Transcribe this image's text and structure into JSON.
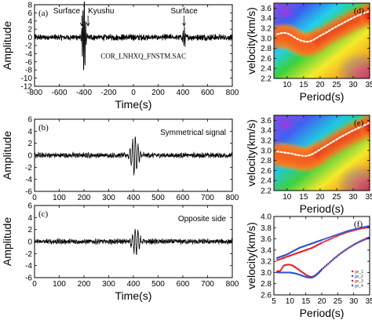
{
  "chart_data": [
    {
      "id": "a",
      "type": "line",
      "panel_label": "(a)",
      "xlabel": "Time(s)",
      "ylabel": "Amplitude",
      "xlim": [
        -800,
        800
      ],
      "ylim": [
        -12,
        8
      ],
      "xticks": [
        -800,
        -600,
        -400,
        -200,
        0,
        200,
        400,
        600,
        800
      ],
      "yticks": [
        -12,
        -10,
        -8,
        -6,
        -4,
        -2,
        0,
        2,
        4,
        6,
        8
      ],
      "file_label": "COR_LNHXQ_FNSTM.SAC",
      "annotations": [
        {
          "text": "Surface",
          "x": -418,
          "y": 7.2
        },
        {
          "text": "Kyushu",
          "x": -380,
          "y": 7.2
        },
        {
          "text": "Surface",
          "x": 410,
          "y": 7.2
        }
      ],
      "packets": [
        {
          "center": -400,
          "amp": 10,
          "width": 15,
          "period": 11
        },
        {
          "center": 410,
          "amp": 2.5,
          "width": 12,
          "period": 11
        }
      ],
      "noise": 0.6
    },
    {
      "id": "b",
      "type": "line",
      "panel_label": "(b)",
      "xlabel": "",
      "ylabel": "Amplitude",
      "xlim": [
        0,
        800
      ],
      "ylim": [
        -6,
        6
      ],
      "xticks": [
        0,
        100,
        200,
        300,
        400,
        500,
        600,
        700,
        800
      ],
      "yticks": [
        -6,
        -4,
        -2,
        0,
        2,
        4,
        6
      ],
      "annotation": "Symmetrical signal",
      "packets": [
        {
          "center": 405,
          "amp": 3.2,
          "width": 18,
          "period": 11
        }
      ],
      "noise": 0.35
    },
    {
      "id": "c",
      "type": "line",
      "panel_label": "(c)",
      "xlabel": "Time(s)",
      "ylabel": "Amplitude",
      "xlim": [
        0,
        800
      ],
      "ylim": [
        -6,
        6
      ],
      "xticks": [
        0,
        100,
        200,
        300,
        400,
        500,
        600,
        700,
        800
      ],
      "yticks": [
        -6,
        -4,
        -2,
        0,
        2,
        4,
        6
      ],
      "annotation": "Opposite side",
      "packets": [
        {
          "center": 410,
          "amp": 2.2,
          "width": 18,
          "period": 11
        }
      ],
      "noise": 0.35
    },
    {
      "id": "d",
      "type": "heatmap",
      "panel_label": "(d)",
      "xlabel": "Period(s)",
      "ylabel": "velocity(km/s)",
      "xlim": [
        6,
        35
      ],
      "ylim": [
        2.2,
        3.7
      ],
      "xticks": [
        10,
        15,
        20,
        25,
        30,
        35
      ],
      "yticks": [
        2.2,
        2.4,
        2.6,
        2.8,
        3.0,
        3.2,
        3.4,
        3.6
      ],
      "dispersion": {
        "x": [
          7,
          8,
          9,
          10,
          11,
          12,
          13,
          14,
          15,
          16,
          17,
          18,
          19,
          20,
          22,
          24,
          26,
          28,
          30,
          32,
          34,
          35
        ],
        "y": [
          3.08,
          3.1,
          3.11,
          3.1,
          3.07,
          3.03,
          2.99,
          2.96,
          2.94,
          2.93,
          2.94,
          2.97,
          3.01,
          3.05,
          3.12,
          3.2,
          3.27,
          3.34,
          3.41,
          3.47,
          3.52,
          3.54
        ]
      }
    },
    {
      "id": "e",
      "type": "heatmap",
      "panel_label": "(e)",
      "xlabel": "Period(s)",
      "ylabel": "velocity(km/s)",
      "xlim": [
        6,
        35
      ],
      "ylim": [
        2.2,
        3.7
      ],
      "xticks": [
        10,
        15,
        20,
        25,
        30,
        35
      ],
      "yticks": [
        2.2,
        2.4,
        2.6,
        2.8,
        3.0,
        3.2,
        3.4,
        3.6
      ],
      "dispersion": {
        "x": [
          7,
          8,
          9,
          10,
          11,
          12,
          13,
          14,
          15,
          16,
          17,
          18,
          19,
          20,
          22,
          24,
          26,
          28,
          30,
          32,
          34,
          35
        ],
        "y": [
          2.98,
          2.97,
          2.96,
          2.95,
          2.94,
          2.93,
          2.91,
          2.9,
          2.89,
          2.89,
          2.91,
          2.94,
          2.98,
          3.02,
          3.1,
          3.18,
          3.26,
          3.33,
          3.4,
          3.46,
          3.52,
          3.55
        ]
      }
    },
    {
      "id": "f",
      "type": "scatter",
      "panel_label": "(f)",
      "xlabel": "Period(s)",
      "ylabel": "velocity(km/s)",
      "xlim": [
        5,
        35
      ],
      "ylim": [
        2.6,
        4.0
      ],
      "xticks": [
        5,
        10,
        15,
        20,
        25,
        30,
        35
      ],
      "yticks": [
        2.6,
        2.8,
        3.0,
        3.2,
        3.4,
        3.6,
        3.8,
        4.0
      ],
      "legend_position": "bottom-right",
      "series": [
        {
          "name": "gv_1",
          "color": "#e8201f",
          "style": "dots",
          "x": [
            6,
            7,
            8,
            9,
            10,
            11,
            12,
            13,
            14,
            15,
            16,
            17,
            18,
            19,
            20,
            22,
            24,
            26,
            28,
            30,
            32,
            34,
            35
          ],
          "y": [
            3.22,
            3.24,
            3.26,
            3.28,
            3.3,
            3.32,
            3.34,
            3.36,
            3.38,
            3.4,
            3.42,
            3.44,
            3.47,
            3.5,
            3.53,
            3.58,
            3.63,
            3.68,
            3.72,
            3.75,
            3.78,
            3.8,
            3.81
          ]
        },
        {
          "name": "gv_2",
          "color": "#2a4fd8",
          "style": "dots",
          "x": [
            6,
            7,
            8,
            9,
            10,
            11,
            12,
            13,
            14,
            15,
            16,
            17,
            18,
            19,
            20,
            22,
            24,
            26,
            28,
            30,
            32,
            34,
            35
          ],
          "y": [
            3.26,
            3.28,
            3.3,
            3.32,
            3.35,
            3.38,
            3.41,
            3.44,
            3.46,
            3.48,
            3.5,
            3.52,
            3.54,
            3.56,
            3.58,
            3.62,
            3.66,
            3.7,
            3.74,
            3.77,
            3.8,
            3.82,
            3.83
          ]
        },
        {
          "name": "gv_3",
          "color": "#e8201f",
          "style": "dots",
          "x": [
            6,
            7,
            8,
            9,
            10,
            11,
            12,
            13,
            14,
            15,
            16,
            17,
            18,
            19,
            20,
            22,
            24,
            26,
            28,
            30,
            32,
            34,
            35
          ],
          "y": [
            3.02,
            3.03,
            3.12,
            3.14,
            3.14,
            3.12,
            3.08,
            3.04,
            3.0,
            2.96,
            2.93,
            2.92,
            2.95,
            3.0,
            3.06,
            3.16,
            3.26,
            3.35,
            3.43,
            3.5,
            3.56,
            3.61,
            3.63
          ]
        },
        {
          "name": "gv_4",
          "color": "#2a4fd8",
          "style": "dots",
          "x": [
            6,
            7,
            8,
            9,
            10,
            11,
            12,
            13,
            14,
            15,
            16,
            17,
            18,
            19,
            20,
            22,
            24,
            26,
            28,
            30,
            32,
            34,
            35
          ],
          "y": [
            3.0,
            3.0,
            3.0,
            3.0,
            3.0,
            2.99,
            2.98,
            2.96,
            2.94,
            2.92,
            2.91,
            2.91,
            2.94,
            2.99,
            3.05,
            3.15,
            3.25,
            3.34,
            3.42,
            3.49,
            3.55,
            3.6,
            3.62
          ]
        }
      ]
    }
  ]
}
